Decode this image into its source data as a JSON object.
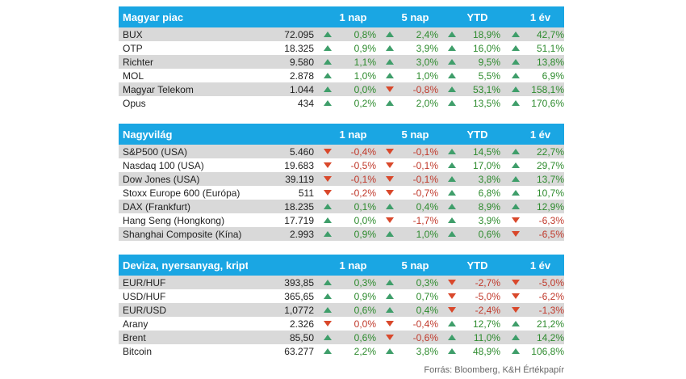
{
  "sections": [
    {
      "title": "Magyar piac",
      "columns": [
        "1 nap",
        "5 nap",
        "YTD",
        "1 év"
      ],
      "rows": [
        {
          "name": "BUX",
          "value": "72.095",
          "changes": [
            {
              "t": "0,8%",
              "d": "up"
            },
            {
              "t": "2,4%",
              "d": "up"
            },
            {
              "t": "18,9%",
              "d": "up"
            },
            {
              "t": "42,7%",
              "d": "up"
            }
          ]
        },
        {
          "name": "OTP",
          "value": "18.325",
          "changes": [
            {
              "t": "0,9%",
              "d": "up"
            },
            {
              "t": "3,9%",
              "d": "up"
            },
            {
              "t": "16,0%",
              "d": "up"
            },
            {
              "t": "51,1%",
              "d": "up"
            }
          ]
        },
        {
          "name": "Richter",
          "value": "9.580",
          "changes": [
            {
              "t": "1,1%",
              "d": "up"
            },
            {
              "t": "3,0%",
              "d": "up"
            },
            {
              "t": "9,5%",
              "d": "up"
            },
            {
              "t": "13,8%",
              "d": "up"
            }
          ]
        },
        {
          "name": "MOL",
          "value": "2.878",
          "changes": [
            {
              "t": "1,0%",
              "d": "up"
            },
            {
              "t": "1,0%",
              "d": "up"
            },
            {
              "t": "5,5%",
              "d": "up"
            },
            {
              "t": "6,9%",
              "d": "up"
            }
          ]
        },
        {
          "name": "Magyar Telekom",
          "value": "1.044",
          "changes": [
            {
              "t": "0,0%",
              "d": "flat"
            },
            {
              "t": "-0,8%",
              "d": "down"
            },
            {
              "t": "53,1%",
              "d": "up"
            },
            {
              "t": "158,1%",
              "d": "up"
            }
          ]
        },
        {
          "name": "Opus",
          "value": "434",
          "changes": [
            {
              "t": "0,2%",
              "d": "up"
            },
            {
              "t": "2,0%",
              "d": "up"
            },
            {
              "t": "13,5%",
              "d": "up"
            },
            {
              "t": "170,6%",
              "d": "up"
            }
          ]
        }
      ]
    },
    {
      "title": "Nagyvilág",
      "columns": [
        "1 nap",
        "5 nap",
        "YTD",
        "1 év"
      ],
      "rows": [
        {
          "name": "S&P500 (USA)",
          "value": "5.460",
          "changes": [
            {
              "t": "-0,4%",
              "d": "down"
            },
            {
              "t": "-0,1%",
              "d": "down"
            },
            {
              "t": "14,5%",
              "d": "up"
            },
            {
              "t": "22,7%",
              "d": "up"
            }
          ]
        },
        {
          "name": "Nasdaq 100 (USA)",
          "value": "19.683",
          "changes": [
            {
              "t": "-0,5%",
              "d": "down"
            },
            {
              "t": "-0,1%",
              "d": "down"
            },
            {
              "t": "17,0%",
              "d": "up"
            },
            {
              "t": "29,7%",
              "d": "up"
            }
          ]
        },
        {
          "name": "Dow Jones (USA)",
          "value": "39.119",
          "changes": [
            {
              "t": "-0,1%",
              "d": "down"
            },
            {
              "t": "-0,1%",
              "d": "down"
            },
            {
              "t": "3,8%",
              "d": "up"
            },
            {
              "t": "13,7%",
              "d": "up"
            }
          ]
        },
        {
          "name": "Stoxx Europe 600 (Európa)",
          "value": "511",
          "changes": [
            {
              "t": "-0,2%",
              "d": "down"
            },
            {
              "t": "-0,7%",
              "d": "down"
            },
            {
              "t": "6,8%",
              "d": "up"
            },
            {
              "t": "10,7%",
              "d": "up"
            }
          ]
        },
        {
          "name": "DAX (Frankfurt)",
          "value": "18.235",
          "changes": [
            {
              "t": "0,1%",
              "d": "up"
            },
            {
              "t": "0,4%",
              "d": "up"
            },
            {
              "t": "8,9%",
              "d": "up"
            },
            {
              "t": "12,9%",
              "d": "up"
            }
          ]
        },
        {
          "name": "Hang Seng (Hongkong)",
          "value": "17.719",
          "changes": [
            {
              "t": "0,0%",
              "d": "flat"
            },
            {
              "t": "-1,7%",
              "d": "down"
            },
            {
              "t": "3,9%",
              "d": "up"
            },
            {
              "t": "-6,3%",
              "d": "down"
            }
          ]
        },
        {
          "name": "Shanghai Composite (Kína)",
          "value": "2.993",
          "changes": [
            {
              "t": "0,9%",
              "d": "up"
            },
            {
              "t": "1,0%",
              "d": "up"
            },
            {
              "t": "0,6%",
              "d": "up"
            },
            {
              "t": "-6,5%",
              "d": "down"
            }
          ]
        }
      ]
    },
    {
      "title": "Deviza, nyersanyag, kripto",
      "columns": [
        "1 nap",
        "5 nap",
        "YTD",
        "1 év"
      ],
      "rows": [
        {
          "name": "EUR/HUF",
          "value": "393,85",
          "changes": [
            {
              "t": "0,3%",
              "d": "up"
            },
            {
              "t": "0,3%",
              "d": "up"
            },
            {
              "t": "-2,7%",
              "d": "down"
            },
            {
              "t": "-5,0%",
              "d": "down"
            }
          ]
        },
        {
          "name": "USD/HUF",
          "value": "365,65",
          "changes": [
            {
              "t": "0,9%",
              "d": "up"
            },
            {
              "t": "0,7%",
              "d": "up"
            },
            {
              "t": "-5,0%",
              "d": "down"
            },
            {
              "t": "-6,2%",
              "d": "down"
            }
          ]
        },
        {
          "name": "EUR/USD",
          "value": "1,0772",
          "changes": [
            {
              "t": "0,6%",
              "d": "up"
            },
            {
              "t": "0,4%",
              "d": "up"
            },
            {
              "t": "-2,4%",
              "d": "down"
            },
            {
              "t": "-1,3%",
              "d": "down"
            }
          ]
        },
        {
          "name": "Arany",
          "value": "2.326",
          "changes": [
            {
              "t": "0,0%",
              "d": "down"
            },
            {
              "t": "-0,4%",
              "d": "down"
            },
            {
              "t": "12,7%",
              "d": "up"
            },
            {
              "t": "21,2%",
              "d": "up"
            }
          ]
        },
        {
          "name": "Brent",
          "value": "85,50",
          "changes": [
            {
              "t": "0,6%",
              "d": "up"
            },
            {
              "t": "-0,6%",
              "d": "down"
            },
            {
              "t": "11,0%",
              "d": "up"
            },
            {
              "t": "14,2%",
              "d": "up"
            }
          ]
        },
        {
          "name": "Bitcoin",
          "value": "63.277",
          "changes": [
            {
              "t": "2,2%",
              "d": "up"
            },
            {
              "t": "3,8%",
              "d": "up"
            },
            {
              "t": "48,9%",
              "d": "up"
            },
            {
              "t": "106,8%",
              "d": "up"
            }
          ]
        }
      ]
    }
  ],
  "source": "Forrás: Bloomberg, K&H Értékpapír",
  "colors": {
    "header": "#1aa6e3",
    "up": "#3f9e6a",
    "down": "#d9482b",
    "alt_row": "#d9d9d9"
  }
}
